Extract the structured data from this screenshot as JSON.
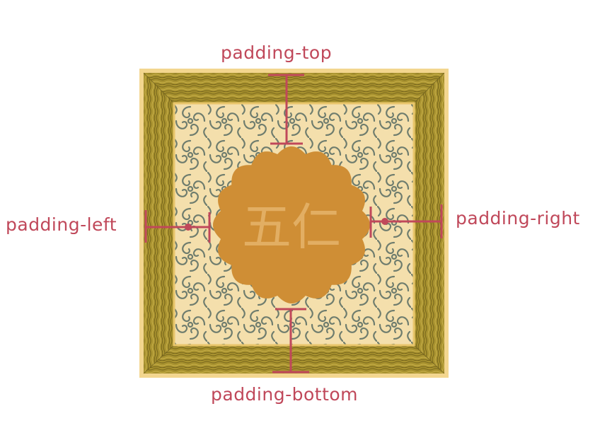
{
  "labels": {
    "top": "padding-top",
    "bottom": "padding-bottom",
    "left": "padding-left",
    "right": "padding-right"
  },
  "mooncake_text": "五仁",
  "colors": {
    "marker": "#c0485a",
    "box_outer_border": "#f3d68f",
    "box_frame": "#9c8a2c",
    "frame_inner_edge": "#e9c66b",
    "inner_background": "#f4dfac",
    "pattern": "#6f7d6e",
    "mooncake": "#cf8e35",
    "mooncake_text": "#e2ae63"
  },
  "icons": {
    "mooncake": "mooncake-icon",
    "pattern": "ornamental-swirl-pattern"
  }
}
